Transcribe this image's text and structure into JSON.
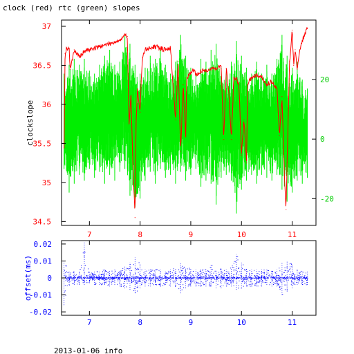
{
  "title": "clock (red) rtc (green) slopes",
  "footer": "2013-01-06 info",
  "colors": {
    "clock": "#ff0000",
    "rtc": "#00ee00",
    "offset": "#0000ff",
    "frame": "#000000"
  },
  "chart_data": [
    {
      "type": "line",
      "title": "clock (red) rtc (green) slopes",
      "xlim": [
        6.45,
        11.47
      ],
      "x_ticks": [
        "7",
        "8",
        "9",
        "10",
        "11"
      ],
      "ylabel": "clockslope",
      "ylim": [
        34.45,
        37.08
      ],
      "y_ticks": [
        "34.5",
        "35",
        "35.5",
        "36",
        "36.5",
        "37"
      ],
      "y2lim": [
        -29,
        40
      ],
      "y2_ticks": [
        "-20",
        "0",
        "20"
      ],
      "grid": false,
      "series": [
        {
          "name": "clock",
          "axis": "left",
          "color": "#ff0000",
          "x": [
            6.5,
            6.52,
            6.55,
            6.6,
            6.62,
            6.7,
            6.8,
            6.9,
            7.0,
            7.1,
            7.2,
            7.3,
            7.4,
            7.5,
            7.6,
            7.65,
            7.7,
            7.75,
            7.78,
            7.82,
            7.86,
            7.9,
            7.92,
            7.95,
            8.0,
            8.02,
            8.05,
            8.1,
            8.2,
            8.3,
            8.4,
            8.5,
            8.6,
            8.7,
            8.75,
            8.8,
            8.85,
            8.9,
            8.92,
            9.0,
            9.05,
            9.1,
            9.15,
            9.2,
            9.3,
            9.4,
            9.5,
            9.6,
            9.65,
            9.7,
            9.75,
            9.8,
            9.85,
            9.9,
            9.95,
            10.0,
            10.05,
            10.1,
            10.12,
            10.2,
            10.3,
            10.4,
            10.5,
            10.6,
            10.7,
            10.75,
            10.8,
            10.85,
            10.88,
            10.9,
            10.95,
            11.0,
            11.03,
            11.06,
            11.1,
            11.15,
            11.2,
            11.25,
            11.3
          ],
          "y": [
            35.45,
            36.65,
            36.72,
            36.72,
            36.45,
            36.7,
            36.6,
            36.68,
            36.7,
            36.72,
            36.74,
            36.76,
            36.78,
            36.8,
            36.82,
            36.85,
            36.88,
            36.87,
            35.75,
            36.1,
            35.2,
            34.55,
            35.75,
            36.2,
            35.9,
            36.3,
            36.6,
            36.7,
            36.72,
            36.74,
            36.72,
            36.7,
            36.72,
            35.8,
            36.55,
            35.4,
            36.25,
            35.6,
            36.35,
            36.4,
            36.45,
            36.38,
            36.4,
            36.42,
            36.44,
            36.45,
            36.47,
            36.48,
            35.55,
            36.46,
            36.15,
            35.55,
            36.35,
            36.33,
            36.25,
            35.35,
            35.8,
            35.25,
            36.25,
            36.35,
            36.38,
            36.35,
            36.25,
            36.3,
            36.2,
            35.6,
            36.1,
            35.05,
            34.65,
            35.25,
            36.55,
            36.95,
            36.5,
            36.7,
            36.45,
            36.7,
            36.82,
            36.9,
            36.98
          ]
        },
        {
          "name": "rtc",
          "axis": "right",
          "color": "#00ee00",
          "x": [
            6.5,
            6.6,
            6.7,
            6.8,
            6.9,
            7.0,
            7.1,
            7.2,
            7.3,
            7.4,
            7.5,
            7.6,
            7.7,
            7.8,
            7.9,
            8.0,
            8.1,
            8.2,
            8.3,
            8.4,
            8.5,
            8.6,
            8.7,
            8.8,
            8.9,
            9.0,
            9.1,
            9.2,
            9.3,
            9.4,
            9.5,
            9.6,
            9.7,
            9.8,
            9.9,
            10.0,
            10.1,
            10.2,
            10.3,
            10.4,
            10.5,
            10.6,
            10.7,
            10.8,
            10.9,
            11.0,
            11.1,
            11.2,
            11.3
          ],
          "y_max": [
            22,
            25,
            27,
            25,
            27,
            23,
            22,
            25,
            28,
            30,
            25,
            26,
            35,
            32,
            25,
            22,
            24,
            28,
            27,
            30,
            25,
            22,
            26,
            35,
            28,
            24,
            22,
            27,
            26,
            30,
            32,
            24,
            22,
            26,
            33,
            28,
            24,
            22,
            26,
            22,
            25,
            22,
            27,
            35,
            28,
            24,
            26,
            20,
            17
          ],
          "y_min": [
            -10,
            -18,
            -15,
            -12,
            -14,
            -10,
            -13,
            -11,
            -15,
            -12,
            -14,
            -11,
            -10,
            -19,
            -23,
            -20,
            -14,
            -11,
            -15,
            -10,
            -13,
            -12,
            -15,
            -11,
            -14,
            -12,
            -10,
            -16,
            -14,
            -15,
            -22,
            -13,
            -12,
            -14,
            -25,
            -17,
            -14,
            -12,
            -15,
            -12,
            -13,
            -14,
            -12,
            -17,
            -21,
            -18,
            -14,
            -15,
            -13
          ]
        }
      ]
    },
    {
      "type": "scatter",
      "xlim": [
        6.45,
        11.47
      ],
      "x_ticks": [
        "7",
        "8",
        "9",
        "10",
        "11"
      ],
      "ylabel": "offset(ms)",
      "ylim": [
        -0.022,
        0.022
      ],
      "y_ticks": [
        "-0.02",
        "-0.01",
        "0",
        "0.01",
        "0.02"
      ],
      "grid": false,
      "series": [
        {
          "name": "offset",
          "color": "#0000ff",
          "x": [
            6.5,
            6.6,
            6.7,
            6.8,
            6.9,
            7.0,
            7.1,
            7.2,
            7.3,
            7.4,
            7.5,
            7.6,
            7.7,
            7.8,
            7.9,
            8.0,
            8.1,
            8.2,
            8.3,
            8.4,
            8.5,
            8.6,
            8.7,
            8.8,
            8.9,
            9.0,
            9.1,
            9.2,
            9.3,
            9.4,
            9.5,
            9.6,
            9.7,
            9.8,
            9.9,
            10.0,
            10.1,
            10.2,
            10.3,
            10.4,
            10.5,
            10.6,
            10.7,
            10.8,
            10.9,
            11.0,
            11.1,
            11.2,
            11.3
          ],
          "y_max": [
            0.01,
            0.004,
            0.004,
            0.004,
            0.021,
            0.004,
            0.004,
            0.004,
            0.005,
            0.004,
            0.005,
            0.004,
            0.007,
            0.009,
            0.012,
            0.008,
            0.005,
            0.005,
            0.005,
            0.005,
            0.004,
            0.005,
            0.006,
            0.009,
            0.006,
            0.006,
            0.005,
            0.005,
            0.005,
            0.008,
            0.005,
            0.006,
            0.005,
            0.006,
            0.014,
            0.009,
            0.006,
            0.005,
            0.005,
            0.005,
            0.005,
            0.004,
            0.005,
            0.009,
            0.01,
            0.008,
            0.005,
            0.004,
            0.004
          ],
          "y_min": [
            -0.016,
            -0.004,
            -0.004,
            -0.004,
            -0.004,
            -0.003,
            -0.004,
            -0.004,
            -0.004,
            -0.005,
            -0.004,
            -0.005,
            -0.006,
            -0.007,
            -0.009,
            -0.006,
            -0.005,
            -0.005,
            -0.004,
            -0.005,
            -0.004,
            -0.005,
            -0.005,
            -0.009,
            -0.006,
            -0.005,
            -0.005,
            -0.005,
            -0.005,
            -0.005,
            -0.006,
            -0.006,
            -0.005,
            -0.005,
            -0.007,
            -0.006,
            -0.005,
            -0.005,
            -0.005,
            -0.005,
            -0.004,
            -0.005,
            -0.005,
            -0.01,
            -0.008,
            -0.006,
            -0.004,
            -0.004,
            -0.004
          ]
        }
      ]
    }
  ]
}
